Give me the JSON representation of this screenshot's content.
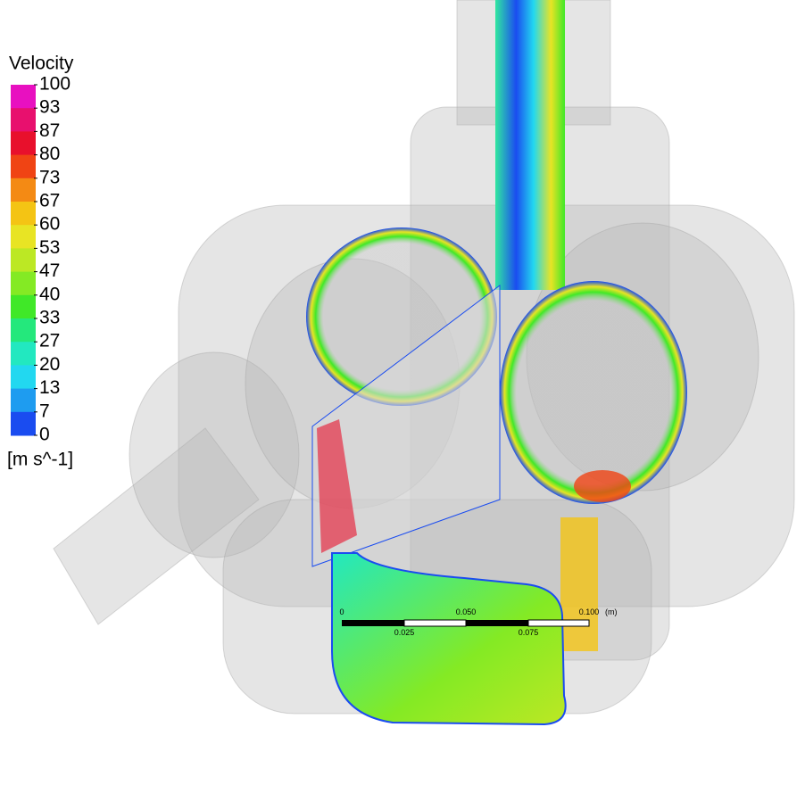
{
  "legend": {
    "title": "Velocity",
    "ticks": [
      100,
      93,
      87,
      80,
      73,
      67,
      60,
      53,
      47,
      40,
      33,
      27,
      20,
      13,
      7,
      0
    ],
    "colors": [
      "#e810c0",
      "#e8106e",
      "#e8102c",
      "#f04414",
      "#f48a14",
      "#f4c414",
      "#e8e424",
      "#bce824",
      "#84ea24",
      "#40e828",
      "#24e87c",
      "#22e8c0",
      "#22d8f0",
      "#1e9cf0",
      "#1a4cf0"
    ],
    "unit": "[m s^-1]"
  },
  "scale_bar": {
    "top_labels": [
      "0",
      "0.050",
      "0.100"
    ],
    "unit": "(m)",
    "bottom_labels": [
      "0.025",
      "0.075"
    ]
  }
}
